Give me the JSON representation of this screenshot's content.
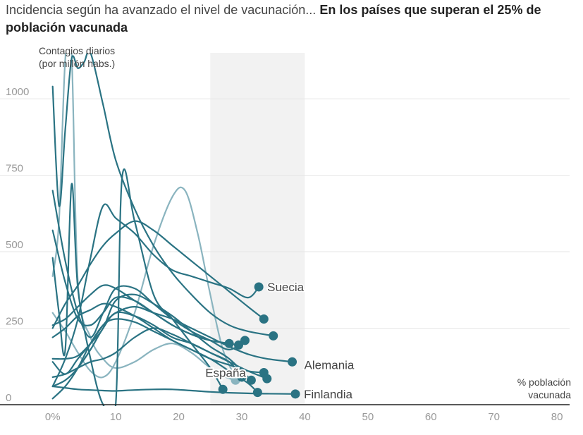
{
  "title": {
    "light": "Incidencia según ha avanzado el nivel de vacunación...",
    "bold": "En los países que superan el 25% de población vacunada"
  },
  "chart_data": {
    "type": "line",
    "ylabel": "Contagios diarios\n(por millón habs.)",
    "xlabel": "% población\nvacunada",
    "xlim": [
      -5,
      82
    ],
    "ylim": [
      0,
      1150
    ],
    "x_ticks": [
      0,
      10,
      20,
      30,
      40,
      50,
      60,
      70,
      80
    ],
    "x_tick_labels": [
      "0%",
      "10",
      "20",
      "30",
      "40",
      "50",
      "60",
      "70",
      "80"
    ],
    "y_ticks": [
      0,
      250,
      500,
      750,
      1000
    ],
    "y_tick_labels": [
      "0",
      "250",
      "500",
      "750",
      "1000"
    ],
    "grid": true,
    "highlight_band": [
      25,
      40
    ],
    "colors": {
      "series": "#2a7383",
      "series_light": "#8ab4bf",
      "band": "#f2f2f2",
      "grid": "#e6e6e6",
      "axis": "#222222",
      "tick": "#999999",
      "label": "#444444"
    },
    "series": [
      {
        "name": "Suecia",
        "x": [
          0,
          2,
          4,
          6,
          8,
          10,
          13,
          16,
          19,
          22,
          25,
          28,
          31,
          32.7
        ],
        "y": [
          60,
          150,
          280,
          480,
          650,
          610,
          560,
          490,
          440,
          420,
          400,
          380,
          350,
          385
        ]
      },
      {
        "x": [
          0,
          2,
          4,
          6,
          8,
          10,
          13,
          16,
          19,
          22,
          25,
          28,
          31,
          33.5
        ],
        "y": [
          250,
          330,
          390,
          460,
          520,
          560,
          600,
          570,
          520,
          470,
          420,
          370,
          320,
          280
        ]
      },
      {
        "x": [
          0,
          1,
          2,
          3,
          4,
          5,
          6,
          8,
          10,
          13,
          16,
          19,
          22,
          25,
          28,
          31,
          35
        ],
        "y": [
          1040,
          650,
          900,
          1130,
          1100,
          1120,
          1150,
          980,
          800,
          640,
          520,
          430,
          360,
          300,
          260,
          240,
          225
        ]
      },
      {
        "name": "Alemania",
        "x": [
          0,
          2,
          4,
          6,
          8,
          10,
          13,
          16,
          19,
          22,
          25,
          28,
          31,
          34,
          38
        ],
        "y": [
          140,
          100,
          150,
          200,
          260,
          300,
          320,
          300,
          280,
          250,
          220,
          190,
          165,
          150,
          140
        ]
      },
      {
        "name": "Finlandia",
        "x": [
          0,
          2,
          4,
          6,
          8,
          10,
          13,
          16,
          19,
          22,
          25,
          28,
          31,
          34,
          38.5
        ],
        "y": [
          60,
          55,
          50,
          48,
          46,
          45,
          48,
          50,
          50,
          46,
          42,
          39,
          37,
          36,
          35
        ]
      },
      {
        "name": "España",
        "x": [
          0,
          1,
          2,
          3,
          4,
          6,
          8,
          10,
          13,
          16,
          19,
          22,
          25,
          27.5,
          29
        ],
        "y": [
          420,
          600,
          1130,
          1150,
          400,
          220,
          150,
          120,
          140,
          180,
          200,
          170,
          120,
          90,
          80
        ],
        "light": true
      },
      {
        "x": [
          0,
          2,
          4,
          6,
          8,
          10,
          13,
          16,
          19,
          21,
          23,
          25,
          27,
          29
        ],
        "y": [
          300,
          240,
          170,
          110,
          90,
          140,
          300,
          520,
          680,
          700,
          560,
          360,
          180,
          90
        ],
        "light": true
      },
      {
        "x": [
          0,
          2,
          4,
          6,
          8,
          10,
          13,
          16,
          19,
          22,
          25,
          28,
          31,
          32.5
        ],
        "y": [
          20,
          60,
          120,
          200,
          260,
          280,
          270,
          240,
          210,
          180,
          150,
          110,
          70,
          40
        ]
      },
      {
        "x": [
          0,
          1,
          2,
          3,
          4,
          6,
          8,
          10,
          11,
          13,
          16,
          19,
          22,
          25,
          27
        ],
        "y": [
          480,
          300,
          180,
          720,
          380,
          150,
          0,
          0,
          740,
          600,
          360,
          280,
          200,
          120,
          50
        ]
      },
      {
        "x": [
          0,
          2,
          4,
          6,
          8,
          10,
          13,
          16,
          19,
          22,
          25,
          28,
          30.5
        ],
        "y": [
          700,
          470,
          300,
          220,
          300,
          380,
          380,
          330,
          280,
          240,
          210,
          180,
          210
        ]
      },
      {
        "x": [
          0,
          2,
          4,
          6,
          8,
          10,
          13,
          16,
          19,
          22,
          25,
          28
        ],
        "y": [
          570,
          400,
          280,
          260,
          300,
          350,
          340,
          300,
          260,
          230,
          210,
          200
        ]
      },
      {
        "x": [
          0,
          2,
          4,
          6,
          8,
          10,
          13,
          16,
          19,
          22,
          25,
          28,
          30
        ],
        "y": [
          60,
          80,
          120,
          180,
          250,
          300,
          290,
          260,
          220,
          200,
          170,
          140,
          90
        ]
      },
      {
        "x": [
          0,
          2,
          4,
          6,
          8,
          10,
          13,
          16,
          19,
          22,
          25,
          28,
          31.5
        ],
        "y": [
          150,
          150,
          160,
          200,
          250,
          340,
          360,
          330,
          290,
          240,
          190,
          150,
          80
        ]
      },
      {
        "x": [
          0,
          2,
          4,
          6,
          8,
          10,
          13,
          16,
          19,
          22,
          25,
          28,
          31,
          33.5
        ],
        "y": [
          220,
          250,
          290,
          310,
          330,
          320,
          290,
          250,
          210,
          180,
          150,
          130,
          110,
          105
        ]
      },
      {
        "x": [
          0,
          2,
          4,
          6,
          8,
          10,
          13,
          16,
          19,
          22,
          25,
          28,
          31,
          34
        ],
        "y": [
          90,
          100,
          120,
          140,
          150,
          170,
          220,
          250,
          230,
          200,
          170,
          140,
          110,
          85
        ]
      },
      {
        "x": [
          0,
          2,
          4,
          6,
          8,
          10,
          13,
          16,
          19,
          22,
          25,
          28,
          29.5
        ],
        "y": [
          260,
          280,
          320,
          360,
          390,
          380,
          340,
          300,
          260,
          230,
          210,
          200,
          195
        ]
      }
    ],
    "labels": [
      {
        "text": "Suecia",
        "series": 0
      },
      {
        "text": "Alemania",
        "series": 3
      },
      {
        "text": "Finlandia",
        "series": 4
      },
      {
        "text": "España",
        "series": 5
      }
    ]
  }
}
